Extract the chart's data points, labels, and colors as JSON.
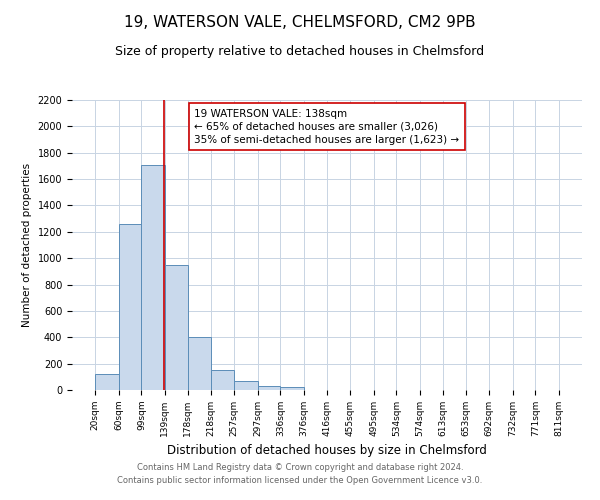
{
  "title": "19, WATERSON VALE, CHELMSFORD, CM2 9PB",
  "subtitle": "Size of property relative to detached houses in Chelmsford",
  "xlabel": "Distribution of detached houses by size in Chelmsford",
  "ylabel": "Number of detached properties",
  "bin_edges": [
    20,
    60,
    99,
    139,
    178,
    218,
    257,
    297,
    336,
    376,
    416,
    455,
    495,
    534,
    574,
    613,
    653,
    692,
    732,
    771,
    811
  ],
  "bar_heights": [
    120,
    1260,
    1710,
    950,
    400,
    150,
    70,
    30,
    20,
    0,
    0,
    0,
    0,
    0,
    0,
    0,
    0,
    0,
    0,
    0
  ],
  "bar_color": "#c9d9ec",
  "bar_edge_color": "#5b8db8",
  "property_size": 138,
  "vline_color": "#cc0000",
  "annotation_line1": "19 WATERSON VALE: 138sqm",
  "annotation_line2": "← 65% of detached houses are smaller (3,026)",
  "annotation_line3": "35% of semi-detached houses are larger (1,623) →",
  "annotation_box_color": "#ffffff",
  "annotation_box_edge_color": "#cc0000",
  "ylim": [
    0,
    2200
  ],
  "yticks": [
    0,
    200,
    400,
    600,
    800,
    1000,
    1200,
    1400,
    1600,
    1800,
    2000,
    2200
  ],
  "tick_labels": [
    "20sqm",
    "60sqm",
    "99sqm",
    "139sqm",
    "178sqm",
    "218sqm",
    "257sqm",
    "297sqm",
    "336sqm",
    "376sqm",
    "416sqm",
    "455sqm",
    "495sqm",
    "534sqm",
    "574sqm",
    "613sqm",
    "653sqm",
    "692sqm",
    "732sqm",
    "771sqm",
    "811sqm"
  ],
  "footer_line1": "Contains HM Land Registry data © Crown copyright and database right 2024.",
  "footer_line2": "Contains public sector information licensed under the Open Government Licence v3.0.",
  "background_color": "#ffffff",
  "grid_color": "#c8d4e3",
  "title_fontsize": 11,
  "subtitle_fontsize": 9,
  "xlabel_fontsize": 8.5,
  "ylabel_fontsize": 7.5,
  "tick_fontsize": 6.5,
  "footer_fontsize": 6,
  "annotation_fontsize": 7.5
}
